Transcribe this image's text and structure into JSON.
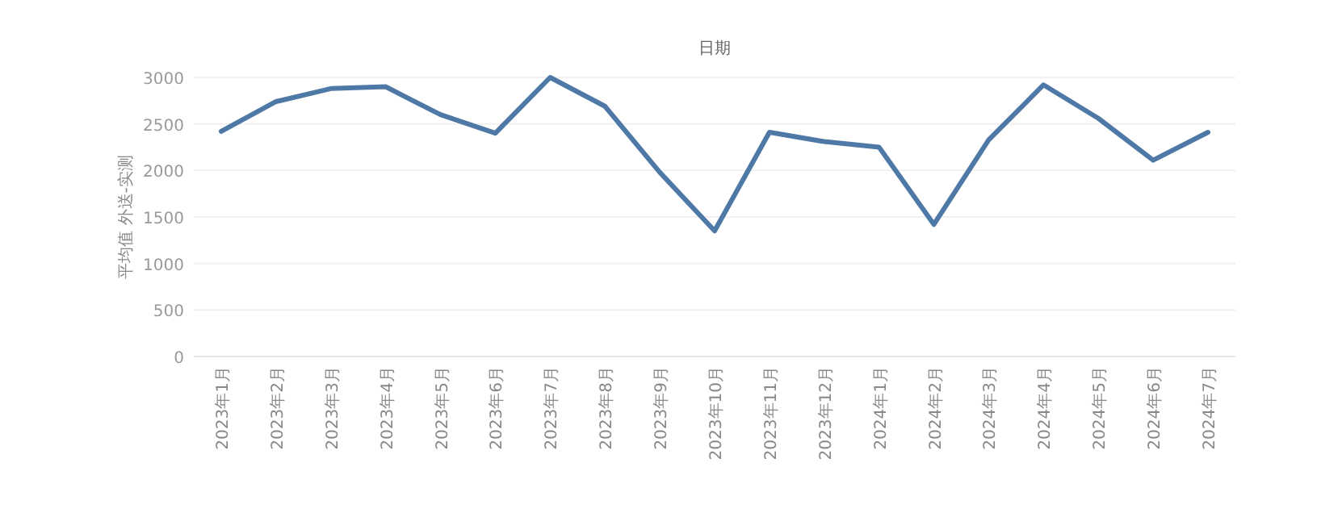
{
  "chart_data": {
    "type": "line",
    "title": "日期",
    "ylabel": "平均值 外送-实测",
    "categories": [
      "2023年1月",
      "2023年2月",
      "2023年3月",
      "2023年4月",
      "2023年5月",
      "2023年6月",
      "2023年7月",
      "2023年8月",
      "2023年9月",
      "2023年10月",
      "2023年11月",
      "2023年12月",
      "2024年1月",
      "2024年2月",
      "2024年3月",
      "2024年4月",
      "2024年5月",
      "2024年6月",
      "2024年7月"
    ],
    "series": [
      {
        "color": "#4e79a7",
        "values": [
          2420,
          2740,
          2880,
          2900,
          2600,
          2400,
          3000,
          2690,
          1980,
          1350,
          2410,
          2310,
          2250,
          1420,
          2330,
          2920,
          2560,
          2110,
          2410
        ]
      }
    ],
    "ylim": [
      0,
      3000
    ],
    "yticks": [
      0,
      500,
      1000,
      1500,
      2000,
      2500,
      3000
    ],
    "grid": "y",
    "marker": "none",
    "line_style": "solid"
  }
}
